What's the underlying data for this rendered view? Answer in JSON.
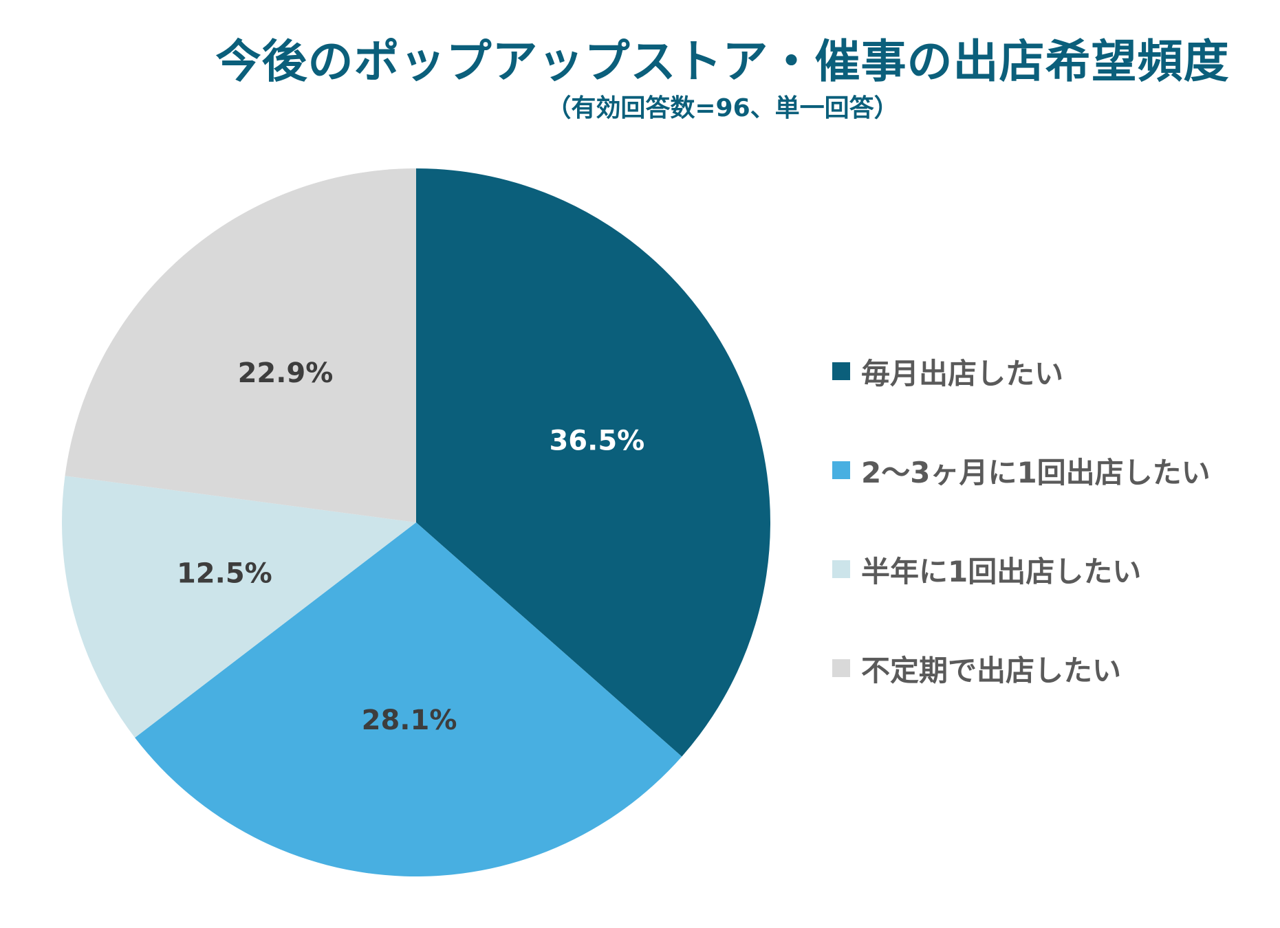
{
  "chart_data": {
    "type": "pie",
    "title": "今後のポップアップストア・催事の出店希望頻度",
    "subtitle": "（有効回答数=96、単一回答）",
    "legend_position": "right",
    "start_angle": "12-o'clock",
    "direction": "clockwise",
    "slices": [
      {
        "label": "毎月出店したい",
        "value": 36.5,
        "value_label": "36.5%",
        "color": "#0b5f7b",
        "label_color": "#ffffff"
      },
      {
        "label": "2〜3ヶ月に1回出店したい",
        "value": 28.1,
        "value_label": "28.1%",
        "color": "#48afe1",
        "label_color": "#3d3d3d"
      },
      {
        "label": "半年に1回出店したい",
        "value": 12.5,
        "value_label": "12.5%",
        "color": "#cce4ea",
        "label_color": "#3d3d3d"
      },
      {
        "label": "不定期で出店したい",
        "value": 22.9,
        "value_label": "22.9%",
        "color": "#d9d9d9",
        "label_color": "#3d3d3d"
      }
    ]
  }
}
